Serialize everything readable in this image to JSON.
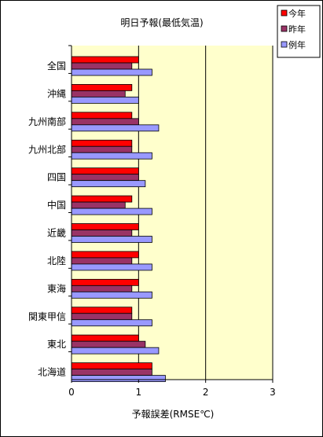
{
  "chart_data": {
    "type": "bar",
    "orientation": "horizontal",
    "title": "明日予報(最低気温)",
    "xlabel": "予報誤差(RMSE℃)",
    "ylabel": "",
    "xlim": [
      0,
      3
    ],
    "xticks": [
      "0",
      "1",
      "2",
      "3"
    ],
    "categories": [
      "全国",
      "沖縄",
      "九州南部",
      "九州北部",
      "四国",
      "中国",
      "近畿",
      "北陸",
      "東海",
      "関東甲信",
      "東北",
      "北海道"
    ],
    "series": [
      {
        "name": "今年",
        "color": "#ff0000",
        "values": [
          1.0,
          0.9,
          0.9,
          0.9,
          1.0,
          0.9,
          1.0,
          1.0,
          1.0,
          0.9,
          1.0,
          1.2
        ]
      },
      {
        "name": "昨年",
        "color": "#993366",
        "values": [
          0.9,
          0.8,
          1.0,
          0.9,
          1.0,
          0.8,
          0.9,
          0.9,
          0.9,
          0.9,
          1.1,
          1.2
        ]
      },
      {
        "name": "例年",
        "color": "#9999ff",
        "values": [
          1.2,
          1.0,
          1.3,
          1.2,
          1.1,
          1.2,
          1.2,
          1.2,
          1.2,
          1.2,
          1.3,
          1.4
        ]
      }
    ],
    "plot_background": "#ffffcc",
    "gridlines": "vertical-major",
    "legend_position": "top-right"
  }
}
